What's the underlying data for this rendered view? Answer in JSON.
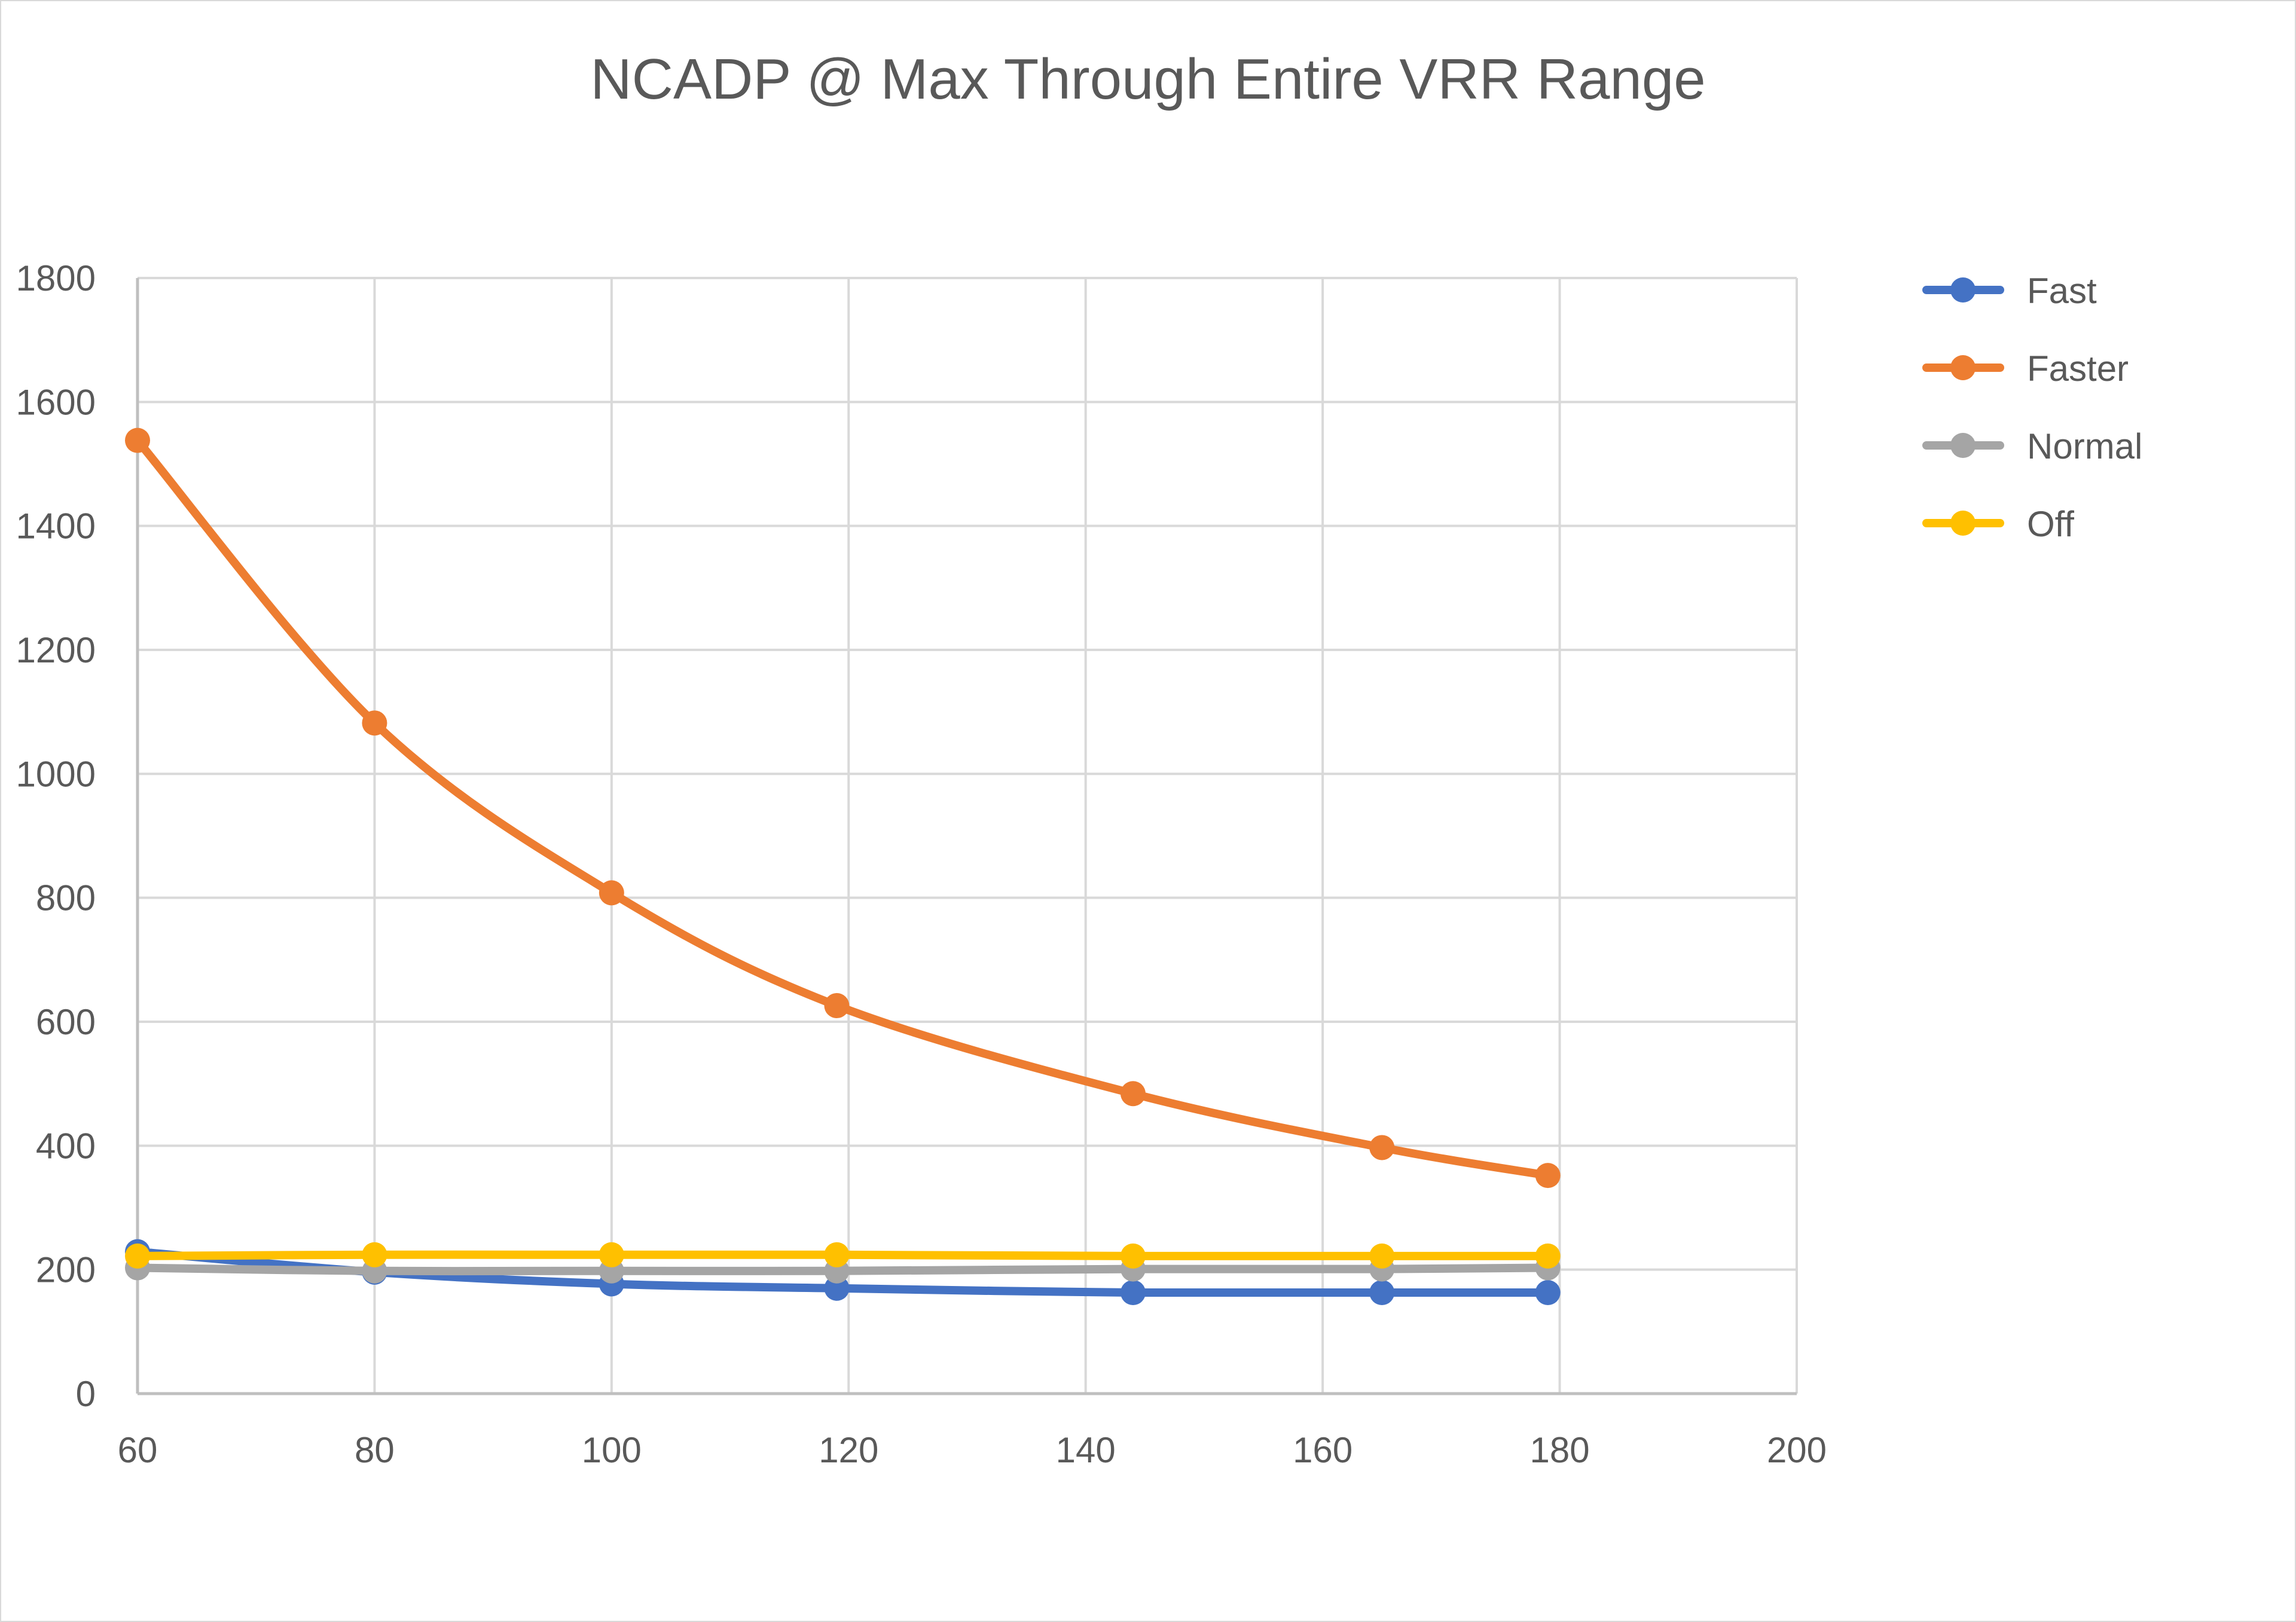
{
  "chart_data": {
    "type": "line",
    "title": "NCADP @ Max Through Entire VRR Range",
    "xlabel": "",
    "ylabel": "",
    "xlim": [
      60,
      200
    ],
    "ylim": [
      0,
      1800
    ],
    "x_ticks": [
      "60",
      "80",
      "100",
      "120",
      "140",
      "160",
      "180",
      "200"
    ],
    "y_ticks": [
      "0",
      "200",
      "400",
      "600",
      "800",
      "1000",
      "1200",
      "1400",
      "1600",
      "1800"
    ],
    "grid": true,
    "legend_position": "right",
    "smooth": true,
    "x": [
      60,
      80,
      100,
      119,
      144,
      165,
      179
    ],
    "series": [
      {
        "name": "Fast",
        "color": "#4472C4",
        "values": [
          229,
          196,
          177,
          170,
          163,
          163,
          163
        ]
      },
      {
        "name": "Faster",
        "color": "#ED7D31",
        "values": [
          1538,
          1082,
          808,
          626,
          484,
          397,
          352
        ]
      },
      {
        "name": "Normal",
        "color": "#A5A5A5",
        "values": [
          203,
          198,
          198,
          198,
          201,
          201,
          203
        ]
      },
      {
        "name": "Off",
        "color": "#FFC000",
        "values": [
          222,
          224,
          224,
          224,
          222,
          222,
          222
        ]
      }
    ]
  }
}
